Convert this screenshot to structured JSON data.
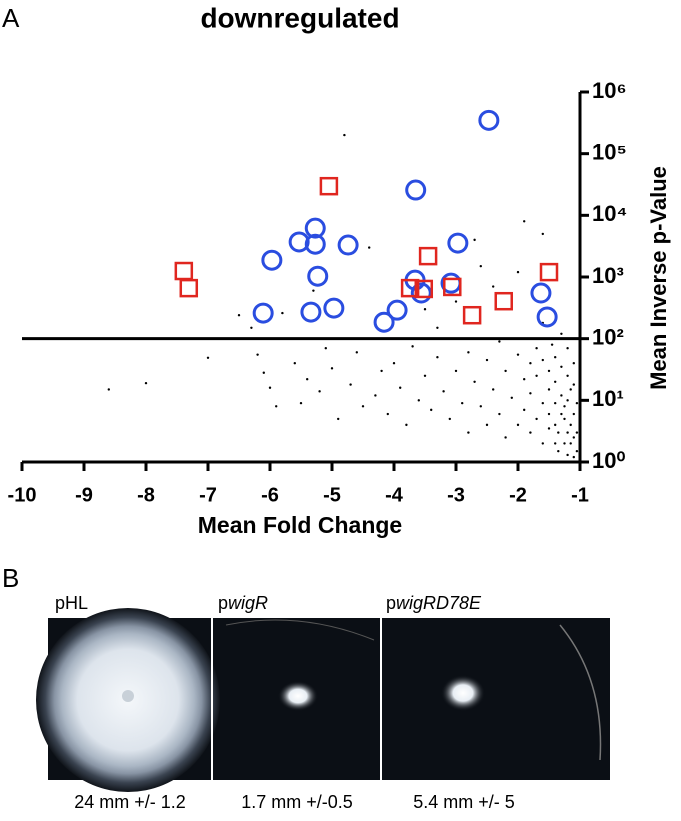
{
  "panel_a_label": "A",
  "chart_data": {
    "type": "scatter",
    "title": "downregulated",
    "xlabel": "Mean Fold Change",
    "ylabel": "Mean Inverse p-Value",
    "xlim": [
      -10,
      -1
    ],
    "xticks": [
      -10,
      -9,
      -8,
      -7,
      -6,
      -5,
      -4,
      -3,
      -2,
      -1
    ],
    "ylim": [
      1,
      1000000
    ],
    "log_y": true,
    "yticks": [
      {
        "value": 1,
        "label": "10⁰"
      },
      {
        "value": 10,
        "label": "10¹"
      },
      {
        "value": 100,
        "label": "10²"
      },
      {
        "value": 1000,
        "label": "10³"
      },
      {
        "value": 10000,
        "label": "10⁴"
      },
      {
        "value": 100000,
        "label": "10⁵"
      },
      {
        "value": 1000000,
        "label": "10⁶"
      }
    ],
    "hline": 100,
    "series": [
      {
        "marker": "dot",
        "color": "#000000",
        "x": [
          -8.6,
          -8.0,
          -7.0,
          -6.5,
          -6.2,
          -6.1,
          -6.0,
          -5.9,
          -5.8,
          -5.6,
          -5.5,
          -5.4,
          -5.2,
          -5.1,
          -5.0,
          -4.9,
          -4.8,
          -4.7,
          -4.6,
          -4.5,
          -4.4,
          -4.3,
          -4.2,
          -4.1,
          -4.0,
          -3.9,
          -3.8,
          -3.7,
          -3.6,
          -3.5,
          -3.4,
          -3.3,
          -3.2,
          -3.1,
          -3.0,
          -3.0,
          -2.9,
          -2.8,
          -2.8,
          -2.7,
          -2.6,
          -2.6,
          -2.5,
          -2.5,
          -2.4,
          -2.3,
          -2.3,
          -2.2,
          -2.2,
          -2.1,
          -2.0,
          -2.0,
          -1.9,
          -1.9,
          -1.9,
          -1.8,
          -1.8,
          -1.8,
          -1.7,
          -1.7,
          -1.7,
          -1.6,
          -1.6,
          -1.6,
          -1.6,
          -1.5,
          -1.5,
          -1.5,
          -1.5,
          -1.45,
          -1.4,
          -1.4,
          -1.4,
          -1.4,
          -1.4,
          -1.35,
          -1.35,
          -1.3,
          -1.3,
          -1.3,
          -1.3,
          -1.25,
          -1.25,
          -1.25,
          -1.2,
          -1.2,
          -1.2,
          -1.2,
          -1.2,
          -1.15,
          -1.15,
          -1.15,
          -1.1,
          -1.1,
          -1.1,
          -1.1,
          -1.1,
          -1.05,
          -1.05,
          -1.05,
          -2.4,
          -1.6,
          -2.0,
          -3.3,
          -5.3,
          -6.3,
          -2.7,
          -3.5
        ],
        "values": [
          15,
          19,
          49,
          240,
          55,
          28,
          16,
          8,
          260,
          40,
          9,
          22,
          14,
          70,
          33,
          5,
          200000,
          18,
          60,
          8,
          3000,
          12,
          30,
          6,
          40,
          16,
          4,
          75,
          10,
          25,
          7,
          50,
          14,
          5,
          30,
          400,
          9,
          60,
          3,
          20,
          1500,
          8,
          45,
          4,
          15,
          90,
          6,
          30,
          2.5,
          11,
          55,
          4,
          22,
          8000,
          7,
          40,
          3,
          13,
          70,
          5,
          25,
          2,
          9,
          45,
          180,
          3.5,
          15,
          6,
          30,
          80,
          2,
          4,
          9,
          20,
          50,
          1.5,
          3,
          6,
          12,
          35,
          120,
          2,
          5,
          8,
          1.3,
          3,
          10,
          25,
          70,
          2,
          4,
          15,
          1.2,
          2.5,
          6,
          18,
          40,
          1.5,
          3,
          9,
          700,
          5000,
          1200,
          150,
          600,
          150,
          4000,
          300
        ]
      },
      {
        "marker": "circle",
        "color": "#2a4de0",
        "x": [
          -2.47,
          -3.65,
          -5.27,
          -5.53,
          -5.27,
          -4.74,
          -2.97,
          -5.97,
          -5.23,
          -3.66,
          -3.56,
          -3.08,
          -4.97,
          -5.34,
          -6.11,
          -3.95,
          -4.16,
          -1.63,
          -1.53
        ],
        "values": [
          347000,
          25700,
          6200,
          3700,
          3400,
          3300,
          3550,
          1870,
          1030,
          890,
          550,
          795,
          313,
          270,
          260,
          290,
          185,
          550,
          225
        ]
      },
      {
        "marker": "square",
        "color": "#e0261f",
        "x": [
          -5.05,
          -7.39,
          -7.31,
          -3.45,
          -3.74,
          -3.52,
          -3.06,
          -2.74,
          -2.23,
          -1.5
        ],
        "values": [
          29700,
          1250,
          660,
          2180,
          660,
          640,
          690,
          240,
          405,
          1200
        ]
      }
    ]
  },
  "panel_b": {
    "label": "B",
    "images": [
      {
        "prefix": "pHL",
        "caption": "24 mm +/- 1.2"
      },
      {
        "prefix": "p",
        "italic": "wigR",
        "caption": "1.7 mm +/-0.5"
      },
      {
        "prefix": "p",
        "italic": "wigRD78E",
        "caption": "5.4 mm +/- 5"
      }
    ]
  }
}
